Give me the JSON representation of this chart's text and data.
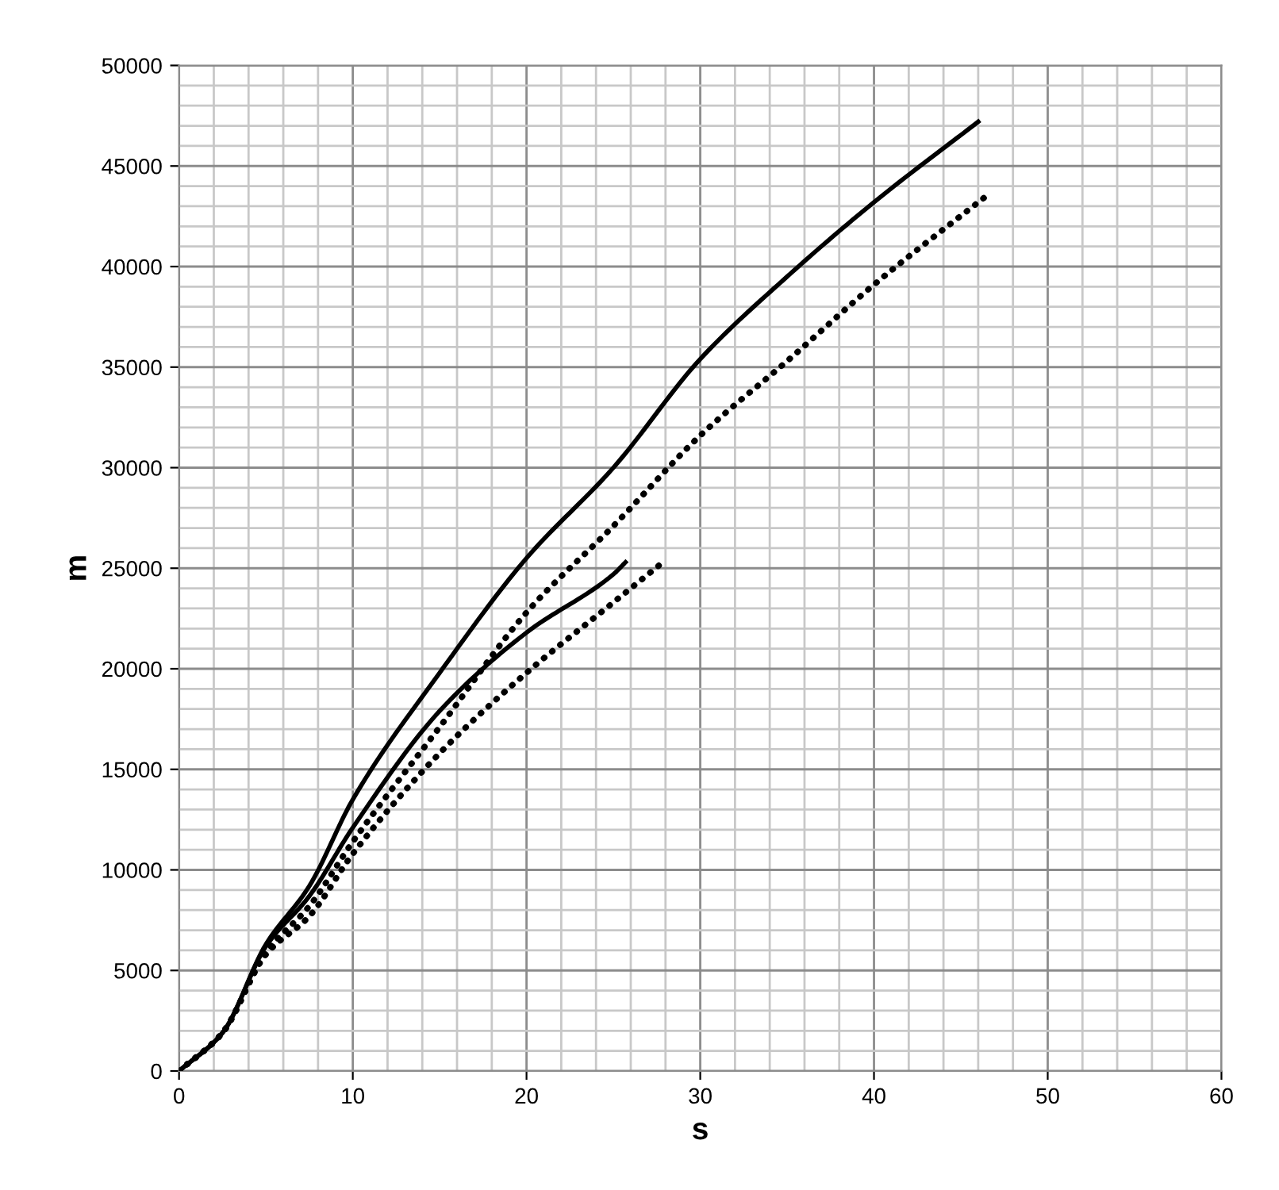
{
  "chart_data": {
    "type": "line",
    "xlabel": "s",
    "ylabel": "m",
    "xlim": [
      0,
      60
    ],
    "xticks": [
      0,
      10,
      20,
      30,
      40,
      50,
      60
    ],
    "ylim": [
      0,
      50000
    ],
    "yticks": [
      0,
      5000,
      10000,
      15000,
      20000,
      25000,
      30000,
      35000,
      40000,
      45000,
      50000
    ],
    "grid": true,
    "marker": "none",
    "series": [
      {
        "color": "#000000",
        "line_style": "solid",
        "x": [
          0,
          2.5,
          5,
          7.5,
          10,
          15,
          20,
          25,
          30,
          35,
          40,
          46
        ],
        "values": [
          0,
          1900,
          6300,
          9200,
          13500,
          19800,
          25500,
          30000,
          35400,
          39500,
          43200,
          47200
        ]
      },
      {
        "color": "#000000",
        "line_style": "solid",
        "x": [
          0,
          2.5,
          5,
          7.5,
          10,
          15,
          20,
          25,
          25.7
        ],
        "values": [
          0,
          1900,
          6200,
          8700,
          12100,
          17900,
          21800,
          24700,
          25300
        ]
      },
      {
        "color": "#000000",
        "line_style": "dotted",
        "x": [
          0,
          2.5,
          5,
          7.5,
          10,
          15,
          20,
          25,
          30,
          35,
          40,
          46.6
        ],
        "values": [
          0,
          1900,
          5900,
          8200,
          11400,
          17100,
          22800,
          27100,
          31600,
          35300,
          39100,
          43600
        ]
      },
      {
        "color": "#000000",
        "line_style": "dotted",
        "x": [
          0,
          2.5,
          5,
          7.5,
          10,
          15,
          20,
          25,
          28
        ],
        "values": [
          0,
          1900,
          5800,
          7700,
          10800,
          15800,
          19800,
          23300,
          25400
        ]
      }
    ]
  }
}
